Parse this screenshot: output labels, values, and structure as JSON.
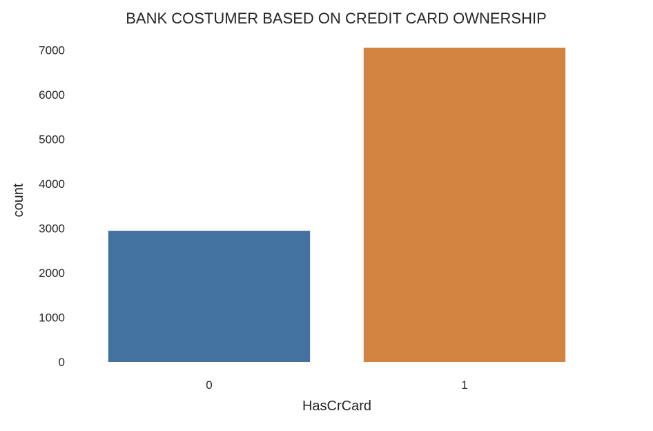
{
  "chart_data": {
    "type": "bar",
    "title": "BANK COSTUMER BASED ON CREDIT CARD OWNERSHIP",
    "xlabel": "HasCrCard",
    "ylabel": "count",
    "categories": [
      "0",
      "1"
    ],
    "values": [
      2945,
      7055
    ],
    "colors": [
      "#4472a0",
      "#d48441"
    ],
    "ylim": [
      0,
      7055
    ],
    "yticks": [
      0,
      1000,
      2000,
      3000,
      4000,
      5000,
      6000,
      7000
    ],
    "grid": false,
    "legend": "none"
  }
}
